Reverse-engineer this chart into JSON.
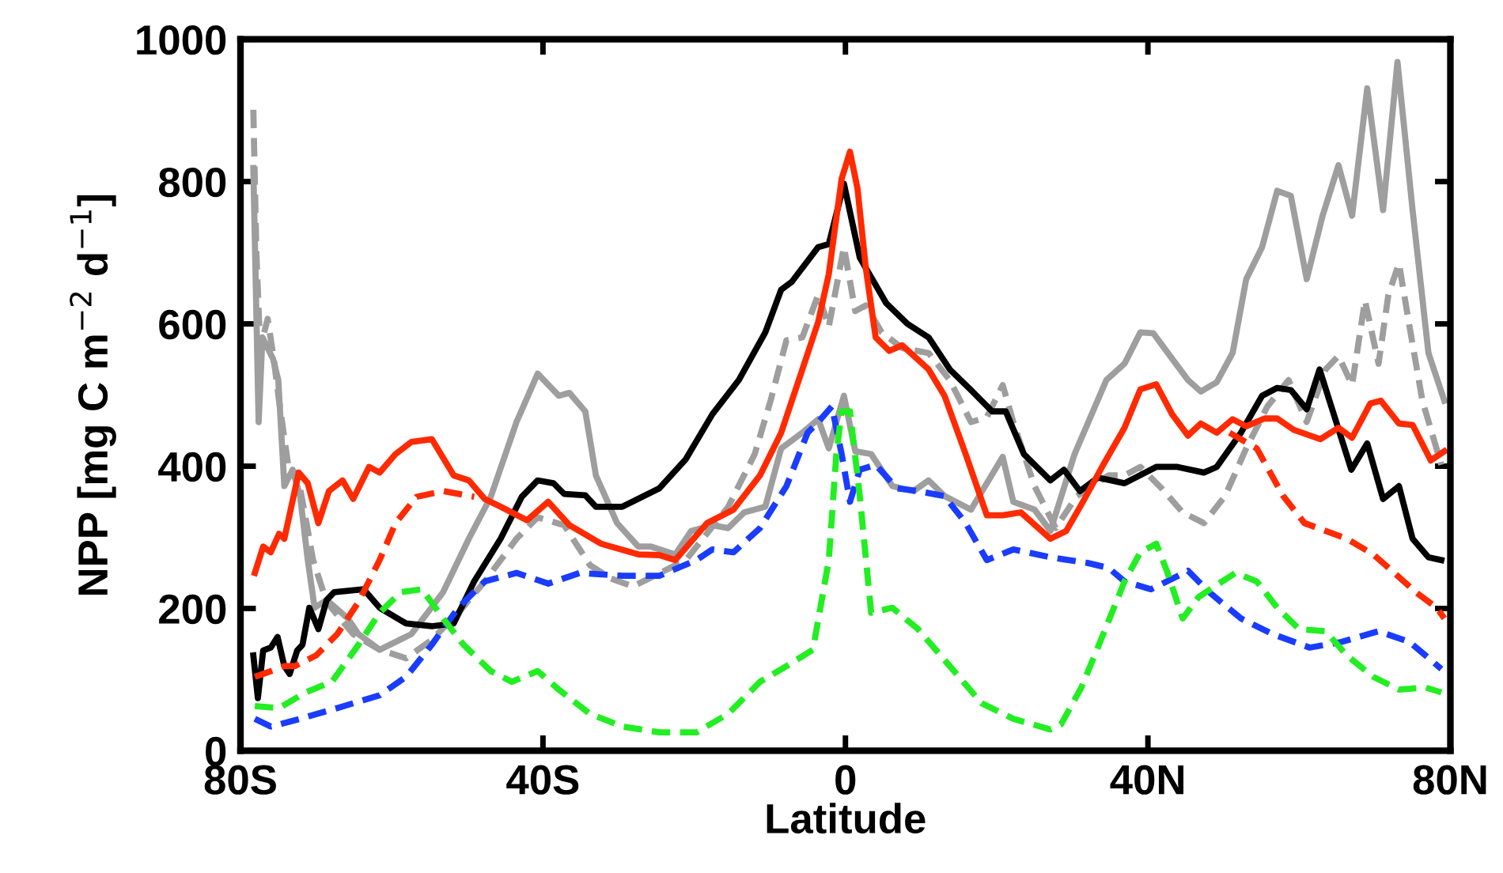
{
  "chart_data": {
    "type": "line",
    "xlabel": "Latitude",
    "ylabel": "NPP [mg C m$^{−2}$ d$^{−1}$]",
    "xlim": [
      -80,
      80
    ],
    "xticks": [
      {
        "value": -80,
        "label": "80S"
      },
      {
        "value": -40,
        "label": "40S"
      },
      0,
      {
        "value": 40,
        "label": "40N"
      },
      {
        "value": 80,
        "label": "80N"
      }
    ],
    "ylim": [
      0,
      1000
    ],
    "yticks": [
      0,
      200,
      400,
      600,
      800,
      1000
    ],
    "grid": false,
    "legend": false,
    "marker": "none",
    "series": [
      {
        "color": "#9e9e9e",
        "line_style": "solid",
        "x": [
          -78.3,
          -77.6,
          -77.1,
          -76.4,
          -75.7,
          -75.0,
          -74.2,
          -73.1,
          -72.1,
          -71.1,
          -70.2,
          -68.6,
          -65.8,
          -64.4,
          -61.6,
          -57.4,
          -53.2,
          -49.8,
          -46.9,
          -43.5,
          -40.7,
          -37.9,
          -36.5,
          -34.4,
          -33.0,
          -30.2,
          -27.4,
          -25.7,
          -22.5,
          -20.4,
          -17.6,
          -15.5,
          -13.4,
          -10.6,
          -8.5,
          -5.7,
          -3.6,
          -2.2,
          -0.2,
          1.3,
          3.4,
          6.2,
          9.0,
          11.0,
          13.1,
          16.6,
          20.8,
          22.2,
          25.0,
          27.1,
          30.3,
          32.4,
          34.5,
          36.9,
          39.0,
          40.7,
          43.2,
          45.3,
          47.0,
          49.1,
          51.2,
          53.0,
          55.1,
          57.1,
          58.9,
          61.0,
          63.1,
          65.2,
          67.0,
          69.0,
          71.1,
          73.0,
          75.0,
          77.1,
          79.2
        ],
        "values": [
          819,
          462,
          581,
          566,
          551,
          521,
          372,
          395,
          357,
          268,
          201,
          212,
          186,
          164,
          142,
          164,
          223,
          298,
          357,
          462,
          530,
          499,
          503,
          477,
          387,
          320,
          287,
          287,
          276,
          309,
          317,
          313,
          335,
          343,
          425,
          447,
          466,
          425,
          499,
          421,
          417,
          372,
          365,
          380,
          358,
          339,
          413,
          350,
          339,
          309,
          417,
          469,
          521,
          544,
          588,
          587,
          551,
          521,
          505,
          518,
          559,
          663,
          708,
          787,
          780,
          663,
          752,
          823,
          752,
          931,
          760,
          968,
          760,
          559,
          492
        ]
      },
      {
        "color": "#9e9e9e",
        "line_style": "dashed",
        "x": [
          -78.3,
          -77.9,
          -77.4,
          -76.4,
          -75.6,
          -74.9,
          -73.5,
          -72.5,
          -71.4,
          -70.4,
          -68.6,
          -65.1,
          -61.6,
          -58.1,
          -54.7,
          -51.2,
          -47.7,
          -43.5,
          -40.7,
          -37.2,
          -33.8,
          -31.0,
          -28.1,
          -21.1,
          -15.5,
          -12.0,
          -9.9,
          -7.8,
          -5.7,
          -3.6,
          -2.2,
          -0.2,
          1.3,
          2.7,
          4.8,
          7.5,
          11.0,
          13.8,
          16.6,
          18.7,
          20.8,
          22.2,
          25.0,
          27.8,
          30.6,
          34.8,
          36.9,
          39.0,
          41.8,
          44.6,
          47.4,
          50.2,
          53.0,
          55.8,
          58.6,
          61.0,
          63.5,
          65.2,
          67.0,
          68.7,
          70.5,
          71.8,
          73.2,
          74.6,
          76.3,
          78.8
        ],
        "values": [
          901,
          700,
          566,
          607,
          551,
          492,
          387,
          391,
          328,
          268,
          209,
          164,
          142,
          130,
          156,
          194,
          238,
          298,
          328,
          317,
          261,
          242,
          231,
          268,
          343,
          417,
          492,
          577,
          581,
          641,
          596,
          708,
          618,
          626,
          588,
          566,
          559,
          521,
          462,
          469,
          514,
          462,
          372,
          313,
          358,
          387,
          387,
          399,
          369,
          335,
          320,
          358,
          425,
          484,
          521,
          462,
          536,
          555,
          514,
          633,
          544,
          641,
          685,
          596,
          492,
          402
        ]
      },
      {
        "color": "#000000",
        "line_style": "solid",
        "x": [
          -78.3,
          -77.7,
          -77.0,
          -76.0,
          -75.1,
          -74.2,
          -73.5,
          -72.5,
          -71.8,
          -70.9,
          -69.7,
          -68.6,
          -67.6,
          -63.7,
          -61.6,
          -58.1,
          -54.7,
          -51.8,
          -49.1,
          -45.6,
          -42.8,
          -40.7,
          -38.6,
          -37.2,
          -34.4,
          -33.0,
          -29.5,
          -24.6,
          -21.1,
          -17.6,
          -14.1,
          -10.6,
          -8.5,
          -7.1,
          -3.6,
          -2.2,
          -0.2,
          1.9,
          5.4,
          8.2,
          11.0,
          13.8,
          16.6,
          19.4,
          21.2,
          23.6,
          27.1,
          28.9,
          31.0,
          33.4,
          36.9,
          41.1,
          43.9,
          47.4,
          49.1,
          52.3,
          55.1,
          57.1,
          58.9,
          61.0,
          62.7,
          66.9,
          69.0,
          71.1,
          73.2,
          75.0,
          77.1,
          78.8
        ],
        "values": [
          134,
          74,
          141,
          145,
          160,
          119,
          108,
          141,
          149,
          201,
          171,
          212,
          223,
          227,
          201,
          179,
          175,
          179,
          238,
          298,
          357,
          380,
          376,
          361,
          359,
          343,
          343,
          369,
          410,
          473,
          521,
          588,
          648,
          659,
          708,
          712,
          797,
          693,
          629,
          600,
          581,
          536,
          507,
          477,
          477,
          417,
          380,
          395,
          365,
          384,
          376,
          399,
          399,
          391,
          399,
          447,
          499,
          510,
          507,
          480,
          536,
          395,
          432,
          354,
          372,
          298,
          272,
          268
        ]
      },
      {
        "color": "#ff2a00",
        "line_style": "solid",
        "x": [
          -78.1,
          -77.0,
          -76.0,
          -74.9,
          -74.2,
          -72.3,
          -71.1,
          -69.7,
          -68.3,
          -66.5,
          -65.1,
          -63.0,
          -61.6,
          -59.5,
          -57.4,
          -54.7,
          -51.8,
          -49.8,
          -47.7,
          -45.6,
          -42.1,
          -39.3,
          -36.5,
          -32.3,
          -27.4,
          -24.6,
          -22.5,
          -18.3,
          -14.8,
          -11.3,
          -8.5,
          -5.7,
          -3.6,
          -2.2,
          -0.5,
          0.6,
          1.6,
          2.7,
          4.0,
          5.8,
          7.5,
          11.0,
          13.1,
          15.9,
          18.7,
          20.8,
          23.2,
          27.1,
          29.2,
          31.2,
          34.1,
          36.9,
          39.0,
          41.1,
          43.2,
          45.3,
          47.0,
          49.1,
          51.2,
          53.0,
          55.4,
          57.1,
          59.3,
          62.8,
          65.2,
          67.0,
          69.4,
          70.8,
          73.2,
          75.0,
          77.4,
          79.2
        ],
        "values": [
          250,
          287,
          279,
          305,
          298,
          391,
          376,
          320,
          365,
          380,
          354,
          399,
          391,
          417,
          434,
          438,
          387,
          380,
          354,
          343,
          324,
          350,
          317,
          291,
          276,
          275,
          268,
          320,
          339,
          387,
          447,
          536,
          603,
          670,
          804,
          842,
          790,
          678,
          581,
          562,
          570,
          536,
          499,
          417,
          331,
          331,
          335,
          298,
          309,
          346,
          402,
          454,
          508,
          515,
          473,
          443,
          460,
          447,
          466,
          456,
          467,
          467,
          451,
          438,
          454,
          440,
          488,
          492,
          460,
          458,
          408,
          421
        ]
      },
      {
        "color": "#ff2a00",
        "line_style": "dashed",
        "x": [
          -78.1,
          -77.0,
          -74.2,
          -72.8,
          -70.0,
          -67.2,
          -64.4,
          -61.6,
          -59.5,
          -56.7,
          -53.2,
          -49.1,
          0,
          50.8,
          54.4,
          57.9,
          60.7,
          63.5,
          66.3,
          69.8,
          72.6,
          75.4,
          78.2,
          79.2
        ],
        "values": [
          104,
          108,
          119,
          119,
          134,
          164,
          209,
          268,
          320,
          357,
          365,
          357,
          null,
          447,
          425,
          358,
          320,
          309,
          298,
          276,
          250,
          223,
          201,
          186
        ]
      },
      {
        "color": "#1a3cff",
        "line_style": "dashed",
        "x": [
          -78.1,
          -76.0,
          -72.1,
          -67.2,
          -61.6,
          -58.1,
          -54.7,
          -51.2,
          -47.7,
          -43.5,
          -39.3,
          -35.1,
          -29.5,
          -24.6,
          -19.7,
          -17.6,
          -14.8,
          -11.3,
          -7.8,
          -5.0,
          -3.6,
          -1.8,
          -0.5,
          0.6,
          1.9,
          4.0,
          6.8,
          9.6,
          13.1,
          15.9,
          18.7,
          22.2,
          27.1,
          32.0,
          34.8,
          36.9,
          40.4,
          42.5,
          45.3,
          48.1,
          52.3,
          56.5,
          61.4,
          65.6,
          70.5,
          74.6,
          78.8
        ],
        "values": [
          45,
          34,
          45,
          60,
          78,
          104,
          149,
          201,
          238,
          250,
          235,
          250,
          246,
          246,
          268,
          283,
          279,
          313,
          372,
          447,
          462,
          484,
          417,
          350,
          395,
          402,
          369,
          365,
          358,
          320,
          268,
          283,
          272,
          264,
          257,
          238,
          227,
          238,
          253,
          223,
          186,
          164,
          145,
          153,
          168,
          153,
          115
        ]
      },
      {
        "color": "#22ee22",
        "line_style": "dashed",
        "x": [
          -78.1,
          -74.9,
          -71.4,
          -67.9,
          -64.4,
          -61.6,
          -58.8,
          -56.0,
          -53.2,
          -50.5,
          -46.9,
          -44.1,
          -40.7,
          -37.9,
          -33.8,
          -29.5,
          -24.6,
          -19.7,
          -15.5,
          -11.3,
          -7.8,
          -4.3,
          -2.2,
          -1.2,
          -0.5,
          0.6,
          1.9,
          3.4,
          6.2,
          9.6,
          13.8,
          18.0,
          22.2,
          27.1,
          28.5,
          31.2,
          34.1,
          36.9,
          39.0,
          41.1,
          42.5,
          44.6,
          46.7,
          48.8,
          51.6,
          54.4,
          57.1,
          60.0,
          63.5,
          66.3,
          69.8,
          73.2,
          76.7,
          78.8
        ],
        "values": [
          63,
          60,
          82,
          97,
          149,
          194,
          223,
          227,
          186,
          149,
          112,
          97,
          112,
          86,
          52,
          34,
          26,
          26,
          52,
          97,
          119,
          142,
          268,
          417,
          477,
          477,
          358,
          194,
          201,
          171,
          119,
          67,
          45,
          30,
          37,
          89,
          164,
          238,
          279,
          291,
          253,
          186,
          216,
          231,
          250,
          238,
          201,
          171,
          168,
          134,
          104,
          86,
          89,
          82
        ]
      }
    ]
  }
}
